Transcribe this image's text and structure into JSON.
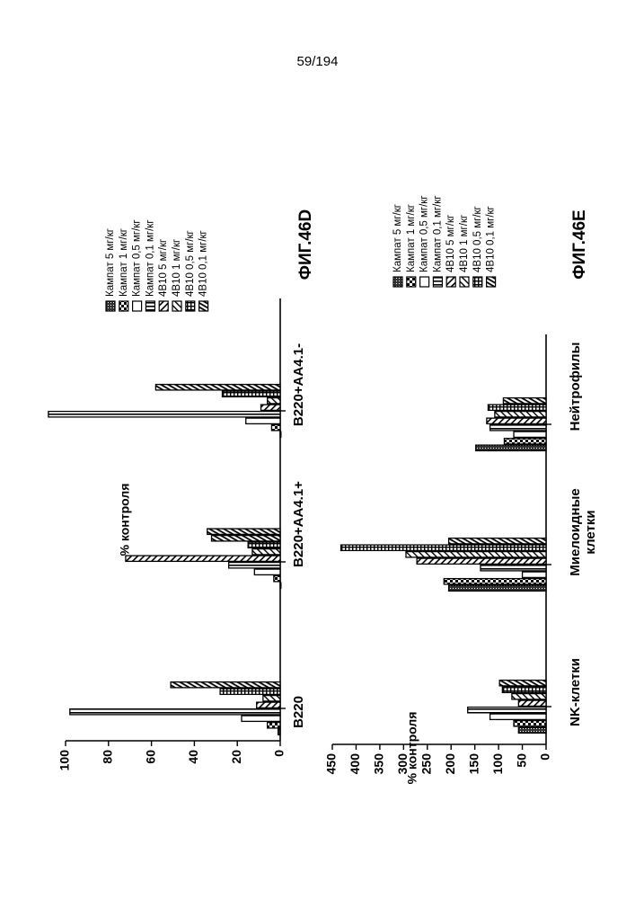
{
  "page": {
    "number": "59/194"
  },
  "chart_data": [
    {
      "id": "fig46d",
      "type": "bar",
      "title": "ФИГ.46D",
      "ylabel": "% контроля",
      "ylim": [
        0,
        100
      ],
      "yticks": [
        "0",
        "20",
        "40",
        "60",
        "80",
        "100"
      ],
      "ytick_values": [
        0,
        20,
        40,
        60,
        80,
        100
      ],
      "categories": [
        "B220",
        "B220+AA4.1+",
        "B220+AA4.1-"
      ],
      "legend_position": "right",
      "series": [
        {
          "name": "Кампат 5 мг/кг",
          "values": [
            1,
            0,
            0
          ]
        },
        {
          "name": "Кампат 1 мг/кг",
          "values": [
            6,
            3,
            4
          ]
        },
        {
          "name": "Кампат 0,5 мг/кг",
          "values": [
            18,
            12,
            16
          ]
        },
        {
          "name": "Кампат 0,1 мг/кг",
          "values": [
            98,
            24,
            108
          ]
        },
        {
          "name": "4B10 5 мг/кг",
          "values": [
            11,
            72,
            9
          ]
        },
        {
          "name": "4B10 1 мг/кг",
          "values": [
            8,
            13,
            6
          ]
        },
        {
          "name": "4B10 0,5 мг/кг",
          "values": [
            28,
            15,
            27
          ]
        },
        {
          "name": "4B10 0,1 мг/кг",
          "values": [
            51,
            32,
            58
          ]
        }
      ],
      "extra_values": [
        {
          "category": "B220+AA4.1+",
          "value": 34
        }
      ]
    },
    {
      "id": "fig46e",
      "type": "bar",
      "title": "ФИГ.46E",
      "ylabel": "% контроля",
      "ylim": [
        0,
        450
      ],
      "yticks": [
        "0",
        "50",
        "100",
        "150",
        "200",
        "250",
        "300",
        "350",
        "400",
        "450"
      ],
      "ytick_values": [
        0,
        50,
        100,
        150,
        200,
        250,
        300,
        350,
        400,
        450
      ],
      "categories": [
        "NK-клетки",
        "Миелоидные клетки",
        "Нейтрофилы"
      ],
      "legend_position": "right",
      "series": [
        {
          "name": "Кампат 5 мг/кг",
          "values": [
            58,
            205,
            148
          ]
        },
        {
          "name": "Кампат 1 мг/кг",
          "values": [
            68,
            215,
            88
          ]
        },
        {
          "name": "Кампат 0,5 мг/кг",
          "values": [
            118,
            50,
            68
          ]
        },
        {
          "name": "Кампат 0,1 мг/кг",
          "values": [
            165,
            138,
            118
          ]
        },
        {
          "name": "4B10 5 мг/кг",
          "values": [
            58,
            272,
            125
          ]
        },
        {
          "name": "4B10 1 мг/кг",
          "values": [
            72,
            295,
            108
          ]
        },
        {
          "name": "4B10 0,5 мг/кг",
          "values": [
            92,
            432,
            122
          ]
        },
        {
          "name": "4B10 0,1 мг/кг",
          "values": [
            98,
            205,
            90
          ]
        }
      ]
    }
  ]
}
